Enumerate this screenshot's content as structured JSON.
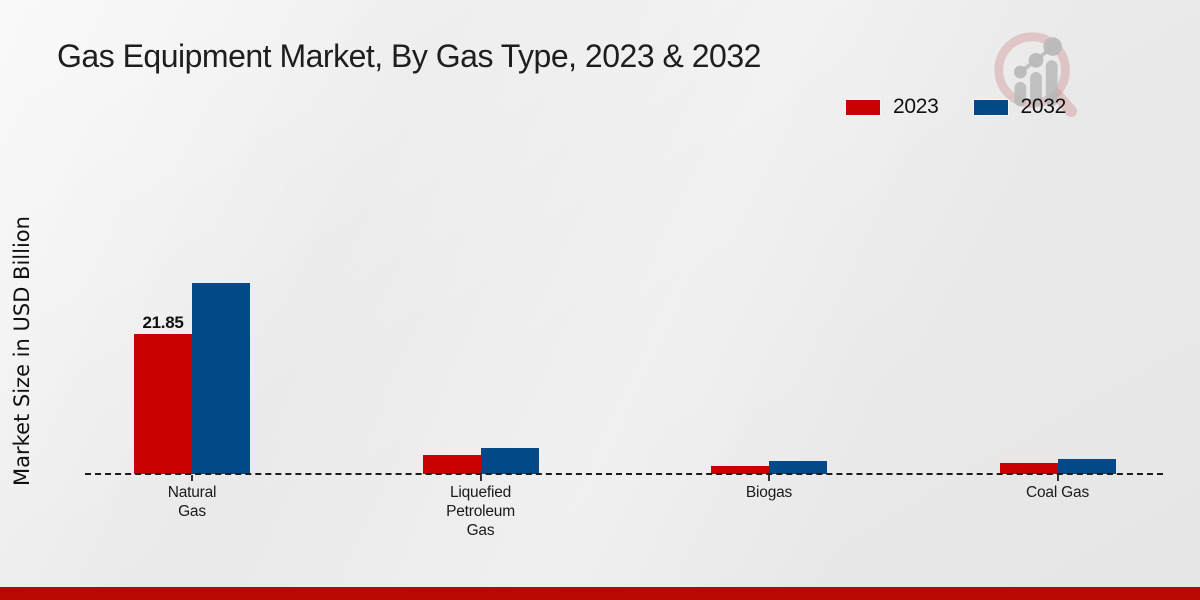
{
  "chart_data": {
    "type": "bar",
    "title": "Gas Equipment Market, By Gas Type, 2023 & 2032",
    "ylabel": "Market Size in USD Billion",
    "xlabel": "",
    "categories": [
      "Natural Gas",
      "Liquefied Petroleum Gas",
      "Biogas",
      "Coal Gas"
    ],
    "category_label_lines": [
      [
        "Natural",
        "Gas"
      ],
      [
        "Liquefied",
        "Petroleum",
        "Gas"
      ],
      [
        "Biogas"
      ],
      [
        "Coal Gas"
      ]
    ],
    "series": [
      {
        "name": "2023",
        "color": "#c90201",
        "values": [
          21.85,
          2.95,
          1.25,
          1.7
        ]
      },
      {
        "name": "2032",
        "color": "#024a87",
        "values": [
          29.8,
          4.05,
          2.0,
          2.35
        ]
      }
    ],
    "data_labels": [
      {
        "category": "Natural Gas",
        "series": "2023",
        "text": "21.85"
      }
    ],
    "ylim": [
      0,
      32
    ],
    "grid": false,
    "baseline_style": "dashed",
    "legend_position": "top-right"
  },
  "branding": {
    "watermark_icon": "magnifier-growth-chart-logo",
    "bottom_bar_color": "#bb0702",
    "watermark_ring_color": "rgba(203,130,130,0.35)",
    "watermark_bar_color": "rgba(185,185,185,0.85)"
  }
}
